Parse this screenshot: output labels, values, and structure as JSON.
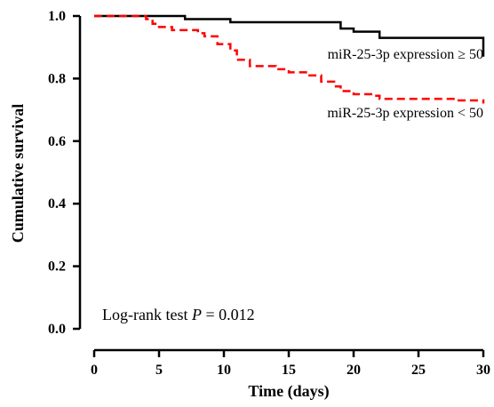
{
  "chart_data": {
    "type": "line",
    "xlabel": "Time (days)",
    "ylabel": "Cumulative survival",
    "xlim": [
      0,
      30
    ],
    "ylim": [
      0,
      1.0
    ],
    "x_ticks": [
      "0",
      "5",
      "10",
      "15",
      "20",
      "25",
      "30"
    ],
    "y_ticks": [
      "0.0",
      "0.2",
      "0.4",
      "0.6",
      "0.8",
      "1.0"
    ],
    "grid": false,
    "series": [
      {
        "name": "miR-25-3p expression ≥ 50",
        "color": "#000000",
        "style": "solid",
        "step_points": [
          [
            0,
            1.0
          ],
          [
            7,
            0.99
          ],
          [
            10.5,
            0.98
          ],
          [
            19,
            0.96
          ],
          [
            20,
            0.95
          ],
          [
            22,
            0.93
          ],
          [
            30,
            0.87
          ]
        ]
      },
      {
        "name": "miR-25-3p expression < 50",
        "color": "#ff0000",
        "style": "dashed",
        "step_points": [
          [
            0,
            1.0
          ],
          [
            4,
            0.99
          ],
          [
            4.5,
            0.975
          ],
          [
            5,
            0.965
          ],
          [
            6,
            0.955
          ],
          [
            8,
            0.945
          ],
          [
            8.5,
            0.935
          ],
          [
            9.5,
            0.91
          ],
          [
            10.5,
            0.89
          ],
          [
            11,
            0.86
          ],
          [
            12,
            0.84
          ],
          [
            14,
            0.83
          ],
          [
            15,
            0.82
          ],
          [
            16.5,
            0.81
          ],
          [
            17.5,
            0.79
          ],
          [
            18.5,
            0.775
          ],
          [
            19,
            0.76
          ],
          [
            20,
            0.75
          ],
          [
            21.5,
            0.745
          ],
          [
            22,
            0.735
          ],
          [
            28,
            0.73
          ],
          [
            30,
            0.72
          ]
        ]
      }
    ],
    "annotation": {
      "prefix": "Log-rank test ",
      "italic": "P",
      "suffix": " = 0.012"
    }
  }
}
